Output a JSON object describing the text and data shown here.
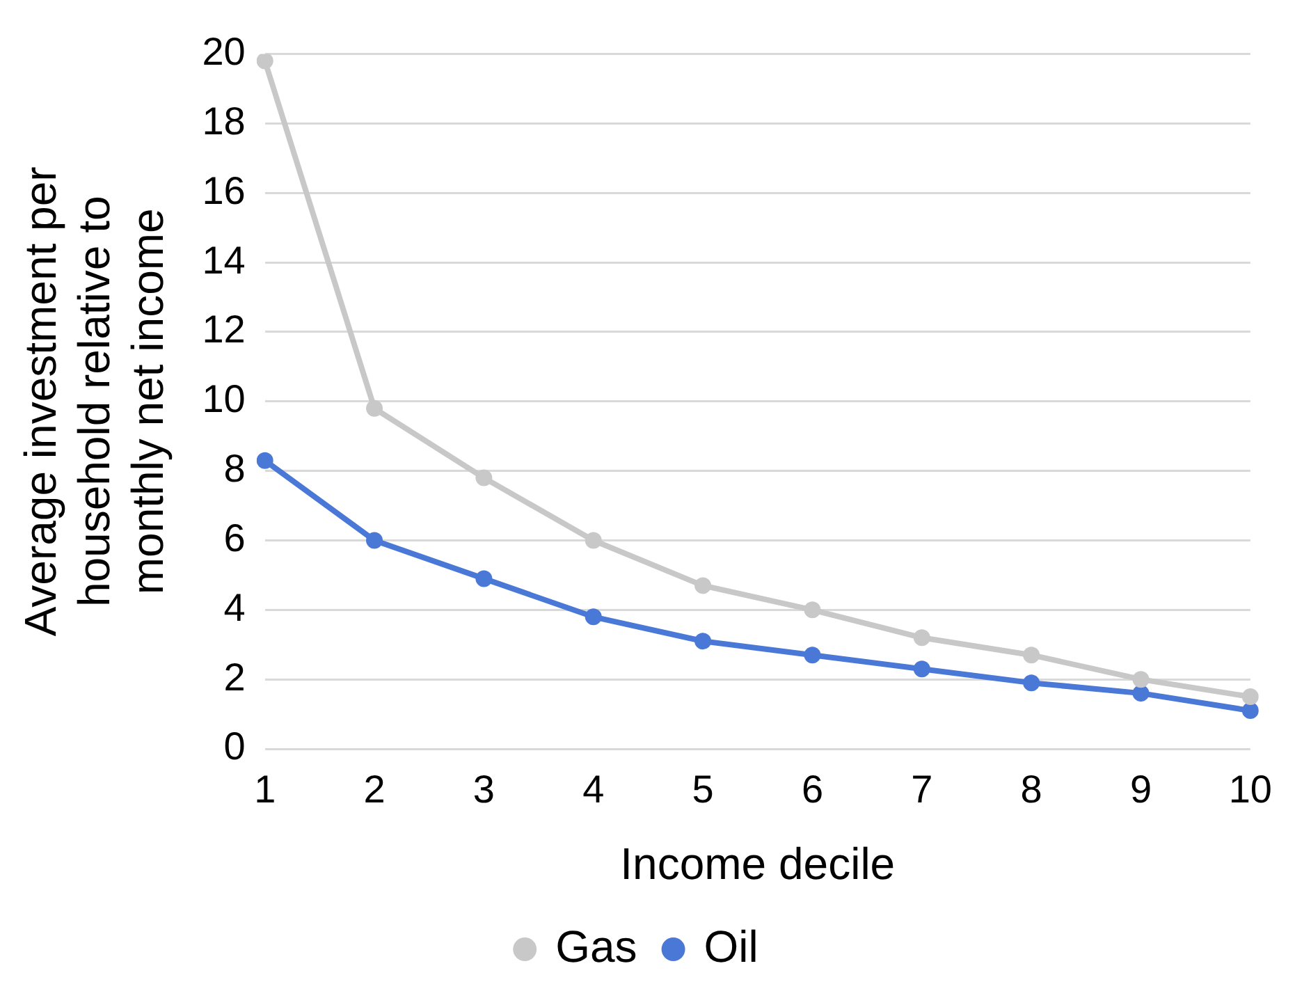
{
  "chart_data": {
    "type": "line",
    "xlabel": "Income decile",
    "ylabel": "Average investment per household relative to monthly net income",
    "categories": [
      "1",
      "2",
      "3",
      "4",
      "5",
      "6",
      "7",
      "8",
      "9",
      "10"
    ],
    "series": [
      {
        "name": "Gas",
        "color": "#c8c8c8",
        "values": [
          19.8,
          9.8,
          7.8,
          6.0,
          4.7,
          4.0,
          3.2,
          2.7,
          2.0,
          1.5
        ]
      },
      {
        "name": "Oil",
        "color": "#4a78d6",
        "values": [
          8.3,
          6.0,
          4.9,
          3.8,
          3.1,
          2.7,
          2.3,
          1.9,
          1.6,
          1.1
        ]
      }
    ],
    "ylim": [
      0,
      20
    ],
    "yticks": [
      0,
      2,
      4,
      6,
      8,
      10,
      12,
      14,
      16,
      18,
      20
    ],
    "grid": "y",
    "legend": "bottom",
    "marker": "circle",
    "line_style": "solid"
  }
}
